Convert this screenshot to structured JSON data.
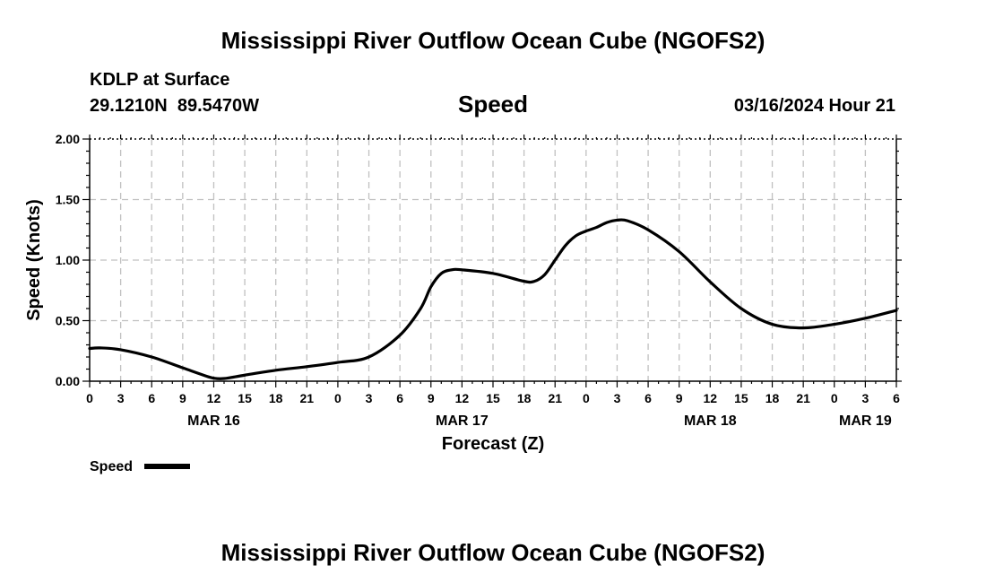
{
  "colors": {
    "background": "#ffffff",
    "line": "#000000",
    "grid": "#c0c0c0"
  },
  "chart_data": {
    "type": "line",
    "title": "Mississippi River Outflow Ocean Cube (NGOFS2)",
    "subtitle": "Speed",
    "station": "KDLP at Surface",
    "coords": "29.1210N  89.5470W",
    "datetime": "03/16/2024 Hour 21",
    "xlabel": "Forecast (Z)",
    "ylabel": "Speed (Knots)",
    "ylim": [
      0,
      2
    ],
    "xlim": [
      0,
      78
    ],
    "grid": true,
    "yticks": [
      {
        "value": 0.0,
        "label": "0.00"
      },
      {
        "value": 0.5,
        "label": "0.50"
      },
      {
        "value": 1.0,
        "label": "1.00"
      },
      {
        "value": 1.5,
        "label": "1.50"
      },
      {
        "value": 2.0,
        "label": "2.00"
      }
    ],
    "xticks": [
      {
        "hour": 0,
        "label": "0"
      },
      {
        "hour": 3,
        "label": "3"
      },
      {
        "hour": 6,
        "label": "6"
      },
      {
        "hour": 9,
        "label": "9"
      },
      {
        "hour": 12,
        "label": "12"
      },
      {
        "hour": 15,
        "label": "15"
      },
      {
        "hour": 18,
        "label": "18"
      },
      {
        "hour": 21,
        "label": "21"
      },
      {
        "hour": 24,
        "label": "0"
      },
      {
        "hour": 27,
        "label": "3"
      },
      {
        "hour": 30,
        "label": "6"
      },
      {
        "hour": 33,
        "label": "9"
      },
      {
        "hour": 36,
        "label": "12"
      },
      {
        "hour": 39,
        "label": "15"
      },
      {
        "hour": 42,
        "label": "18"
      },
      {
        "hour": 45,
        "label": "21"
      },
      {
        "hour": 48,
        "label": "0"
      },
      {
        "hour": 51,
        "label": "3"
      },
      {
        "hour": 54,
        "label": "6"
      },
      {
        "hour": 57,
        "label": "9"
      },
      {
        "hour": 60,
        "label": "12"
      },
      {
        "hour": 63,
        "label": "15"
      },
      {
        "hour": 66,
        "label": "18"
      },
      {
        "hour": 69,
        "label": "21"
      },
      {
        "hour": 72,
        "label": "0"
      },
      {
        "hour": 75,
        "label": "3"
      },
      {
        "hour": 78,
        "label": "6"
      }
    ],
    "day_labels": [
      {
        "hour": 12,
        "label": "MAR 16"
      },
      {
        "hour": 36,
        "label": "MAR 17"
      },
      {
        "hour": 60,
        "label": "MAR 18"
      },
      {
        "hour": 75,
        "label": "MAR 19"
      }
    ],
    "legend": {
      "label": "Speed",
      "position": "bottom-left"
    },
    "series": [
      {
        "name": "Speed",
        "x": [
          0,
          1,
          3,
          6,
          9,
          11,
          12,
          13,
          15,
          18,
          21,
          24,
          27,
          30,
          32,
          33,
          34,
          35,
          36,
          39,
          42,
          43,
          44,
          45,
          46,
          47,
          48,
          49,
          50,
          51,
          52,
          54,
          57,
          60,
          63,
          66,
          69,
          72,
          75,
          78
        ],
        "values": [
          0.27,
          0.275,
          0.26,
          0.2,
          0.11,
          0.05,
          0.025,
          0.022,
          0.05,
          0.09,
          0.12,
          0.155,
          0.2,
          0.38,
          0.6,
          0.78,
          0.89,
          0.92,
          0.92,
          0.89,
          0.825,
          0.825,
          0.88,
          1.0,
          1.12,
          1.2,
          1.24,
          1.27,
          1.31,
          1.33,
          1.325,
          1.25,
          1.07,
          0.82,
          0.6,
          0.47,
          0.44,
          0.47,
          0.52,
          0.585
        ]
      }
    ]
  },
  "footer": {
    "title": "Mississippi River Outflow Ocean Cube (NGOFS2)"
  }
}
